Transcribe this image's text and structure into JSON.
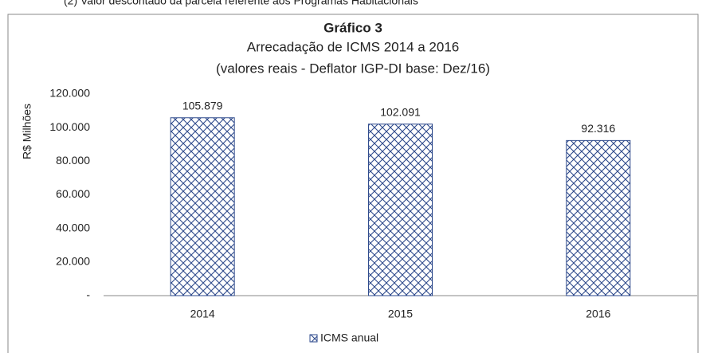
{
  "note": "(2) Valor descontado da parcela referente aos Programas Habitacionais",
  "chart_data": {
    "type": "bar",
    "title": "Gráfico 3",
    "subtitle": [
      "Arrecadação de ICMS 2014 a 2016",
      "(valores reais - Deflator IGP-DI base: Dez/16)"
    ],
    "y_label": "R$ Milhões",
    "categories": [
      "2014",
      "2015",
      "2016"
    ],
    "series": [
      {
        "name": "ICMS anual",
        "color": "#2e4a8c",
        "values": [
          105879,
          102091,
          92316
        ],
        "value_labels": [
          "105.879",
          "102.091",
          "92.316"
        ]
      }
    ],
    "ylim": [
      0,
      120000
    ],
    "yticks": [
      {
        "value": 0,
        "label": "-"
      },
      {
        "value": 20000,
        "label": "20.000"
      },
      {
        "value": 40000,
        "label": "40.000"
      },
      {
        "value": 60000,
        "label": "60.000"
      },
      {
        "value": 80000,
        "label": "80.000"
      },
      {
        "value": 100000,
        "label": "100.000"
      },
      {
        "value": 120000,
        "label": "120.000"
      }
    ],
    "grid": false,
    "legend": "bottom"
  }
}
